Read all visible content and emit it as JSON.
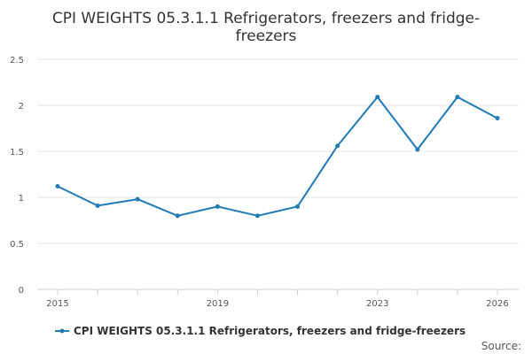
{
  "chart_data": {
    "type": "line",
    "title_lines": [
      "CPI WEIGHTS 05.3.1.1 Refrigerators, freezers and fridge-",
      "freezers"
    ],
    "xlabel": "",
    "ylabel": "",
    "xlim": [
      2015,
      2026
    ],
    "ylim": [
      0,
      2.5
    ],
    "x_ticks": [
      2015,
      2019,
      2023,
      2026
    ],
    "y_ticks": [
      0,
      0.5,
      1,
      1.5,
      2,
      2.5
    ],
    "y_tick_labels": [
      "0",
      "0.5",
      "1",
      "1.5",
      "2",
      "2.5"
    ],
    "grid": true,
    "legend_position": "bottom",
    "series": [
      {
        "name": "CPI WEIGHTS 05.3.1.1 Refrigerators, freezers and fridge-freezers",
        "color": "#1f7ab8",
        "x": [
          2015,
          2016,
          2017,
          2018,
          2019,
          2020,
          2021,
          2022,
          2023,
          2024,
          2025,
          2026
        ],
        "y": [
          1.12,
          0.91,
          0.98,
          0.8,
          0.9,
          0.8,
          0.9,
          1.56,
          2.09,
          1.52,
          2.09,
          1.86
        ]
      }
    ],
    "credit": "Source:"
  }
}
